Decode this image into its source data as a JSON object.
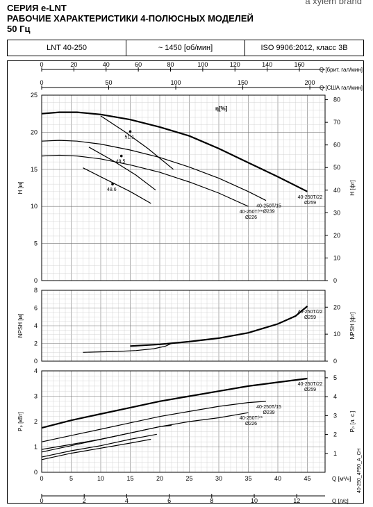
{
  "header": {
    "brand": "a xylem brand",
    "series": "СЕРИЯ e-LNT",
    "title_line1": "РАБОЧИЕ ХАРАКТЕРИСТИКИ 4-ПОЛЮСНЫХ МОДЕЛЕЙ",
    "title_line2": "50 Гц"
  },
  "specs": {
    "model": "LNT 40-250",
    "speed": "~ 1450 [об/мин]",
    "standard": "ISO 9906:2012, класс 3B"
  },
  "top_axes": {
    "brit_label": "Q [брит. гал/мин]",
    "brit_ticks": [
      0,
      20,
      40,
      60,
      80,
      100,
      120,
      140,
      160
    ],
    "usa_label": "Q [США гал/мин]",
    "usa_ticks": [
      0,
      50,
      100,
      150,
      200
    ]
  },
  "bottom_axes": {
    "m3h_label": "Q [м³/ч]",
    "m3h_ticks": [
      0,
      5,
      10,
      15,
      20,
      25,
      30,
      35,
      40,
      45
    ],
    "ls_label": "Q [л/с]",
    "ls_ticks": [
      0,
      2,
      4,
      6,
      8,
      10,
      12
    ]
  },
  "side_code": "40-250_4P50_A_CH",
  "chart_data": [
    {
      "type": "line",
      "panel": "head",
      "ylabel": "H [м]",
      "ylabel_right": "H [фт]",
      "ylim": [
        0,
        25
      ],
      "yticks": [
        0,
        5,
        10,
        15,
        20,
        25
      ],
      "yticks_right": [
        0,
        10,
        20,
        30,
        40,
        50,
        60,
        70,
        80
      ],
      "xlim": [
        0,
        48
      ],
      "efficiency_label": "η[%]",
      "efficiency_points": [
        {
          "label": "51.1",
          "x": 15,
          "y": 20.1
        },
        {
          "label": "49.5",
          "x": 13.5,
          "y": 16.8
        },
        {
          "label": "48.6",
          "x": 12,
          "y": 13.0
        }
      ],
      "series": [
        {
          "name": "40-250T/22",
          "sub": "Ø259",
          "x": [
            0,
            3,
            6,
            10,
            15,
            20,
            25,
            30,
            35,
            40,
            45
          ],
          "y": [
            22.5,
            22.7,
            22.7,
            22.4,
            21.7,
            20.7,
            19.5,
            17.8,
            15.9,
            14.0,
            12.0
          ]
        },
        {
          "name": "40-250T/15",
          "sub": "Ø239",
          "x": [
            0,
            3,
            6,
            10,
            15,
            20,
            25,
            30,
            35,
            38
          ],
          "y": [
            18.8,
            18.9,
            18.8,
            18.4,
            17.6,
            16.6,
            15.3,
            13.8,
            12.0,
            10.8
          ]
        },
        {
          "name": "40-250T/**",
          "sub": "Ø226",
          "x": [
            0,
            3,
            6,
            10,
            15,
            20,
            25,
            30,
            35
          ],
          "y": [
            16.8,
            16.9,
            16.8,
            16.4,
            15.6,
            14.6,
            13.3,
            11.8,
            10.0
          ]
        },
        {
          "name": "",
          "x": [
            10,
            14,
            18,
            22.3
          ],
          "y": [
            22.2,
            20.1,
            17.8,
            15.0
          ]
        },
        {
          "name": "",
          "x": [
            8,
            12,
            16,
            19.3
          ],
          "y": [
            18.0,
            16.2,
            14.2,
            12.2
          ]
        },
        {
          "name": "",
          "x": [
            7,
            11,
            15,
            18.5
          ],
          "y": [
            15.2,
            13.6,
            12.0,
            10.4
          ]
        }
      ]
    },
    {
      "type": "line",
      "panel": "npsh",
      "ylabel": "NPSH [м]",
      "ylabel_right": "NPSH [фт]",
      "ylim": [
        0,
        8
      ],
      "yticks": [
        0,
        2,
        4,
        6,
        8
      ],
      "yticks_right": [
        0,
        10,
        20
      ],
      "xlim": [
        0,
        48
      ],
      "series": [
        {
          "name": "40-250T/22",
          "sub": "Ø259",
          "x": [
            15,
            20,
            25,
            30,
            35,
            40,
            43,
            45
          ],
          "y": [
            1.7,
            1.9,
            2.2,
            2.6,
            3.2,
            4.2,
            5.1,
            6.2
          ]
        },
        {
          "name": "",
          "x": [
            7,
            10,
            13,
            16,
            19,
            21,
            22
          ],
          "y": [
            1.0,
            1.05,
            1.1,
            1.2,
            1.4,
            1.7,
            2.0
          ]
        }
      ]
    },
    {
      "type": "line",
      "panel": "power",
      "ylabel": "Pₚ [кВт]",
      "ylabel_right": "Pₚ [л. с.]",
      "ylim": [
        0,
        4
      ],
      "yticks": [
        0,
        1,
        2,
        3,
        4
      ],
      "yticks_right": [
        1,
        2,
        3,
        4,
        5
      ],
      "xlim": [
        0,
        48
      ],
      "series": [
        {
          "name": "40-250T/22",
          "sub": "Ø259",
          "x": [
            0,
            5,
            10,
            15,
            20,
            25,
            30,
            35,
            40,
            45
          ],
          "y": [
            1.75,
            2.05,
            2.3,
            2.55,
            2.8,
            3.0,
            3.2,
            3.4,
            3.55,
            3.7
          ]
        },
        {
          "name": "40-250T/15",
          "sub": "Ø239",
          "x": [
            0,
            5,
            10,
            15,
            20,
            25,
            30,
            35,
            38
          ],
          "y": [
            1.2,
            1.45,
            1.7,
            1.95,
            2.2,
            2.4,
            2.6,
            2.75,
            2.8
          ]
        },
        {
          "name": "40-250T/**",
          "sub": "Ø226",
          "x": [
            0,
            5,
            10,
            15,
            20,
            25,
            30,
            35
          ],
          "y": [
            0.8,
            1.05,
            1.3,
            1.55,
            1.8,
            2.0,
            2.15,
            2.35
          ]
        },
        {
          "name": "",
          "x": [
            0,
            5,
            10,
            15,
            20,
            22
          ],
          "y": [
            0.9,
            1.1,
            1.3,
            1.55,
            1.8,
            1.85
          ]
        },
        {
          "name": "",
          "x": [
            0,
            5,
            10,
            15,
            19.5
          ],
          "y": [
            0.6,
            0.85,
            1.05,
            1.3,
            1.5
          ]
        },
        {
          "name": "",
          "x": [
            0,
            5,
            10,
            15,
            18.5
          ],
          "y": [
            0.5,
            0.75,
            0.95,
            1.15,
            1.3
          ]
        }
      ]
    }
  ]
}
